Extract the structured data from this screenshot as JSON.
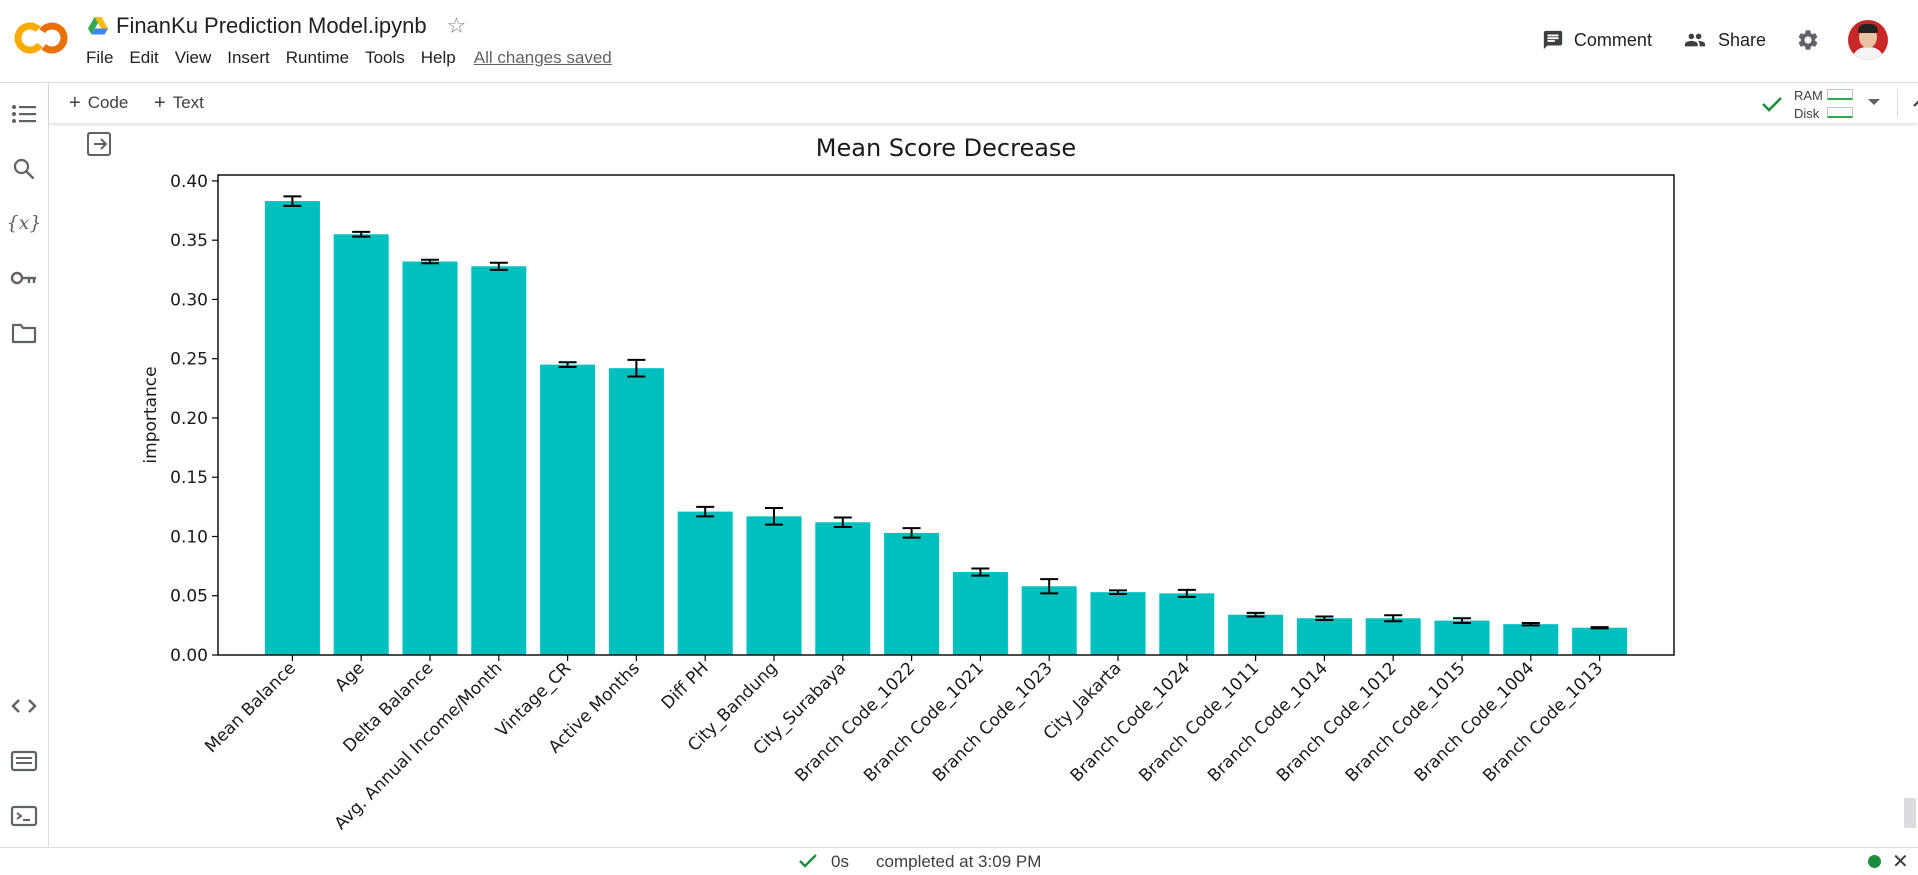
{
  "app": {
    "notebook_title": "FinanKu Prediction Model.ipynb",
    "menu": [
      "File",
      "Edit",
      "View",
      "Insert",
      "Runtime",
      "Tools",
      "Help"
    ],
    "save_status": "All changes saved",
    "comment_label": "Comment",
    "share_label": "Share"
  },
  "toolbar": {
    "code_label": "Code",
    "text_label": "Text",
    "ram_label": "RAM",
    "disk_label": "Disk"
  },
  "status": {
    "exec_time": "0s",
    "completed_text": "completed at 3:09 PM"
  },
  "colors": {
    "bar": "#00bfbf",
    "accent": "#1a73e8",
    "ok": "#1e8e3e"
  },
  "chart_data": {
    "type": "bar",
    "title": "Mean Score Decrease",
    "xlabel": "",
    "ylabel": "importance",
    "ylim": [
      0,
      0.405
    ],
    "yticks": [
      "0.00",
      "0.05",
      "0.10",
      "0.15",
      "0.20",
      "0.25",
      "0.30",
      "0.35",
      "0.40"
    ],
    "categories": [
      "Mean Balance",
      "Age",
      "Delta Balance",
      "Avg. Annual Income/Month",
      "Vintage_CR",
      "Active Months",
      "Diff PH",
      "City_Bandung",
      "City_Surabaya",
      "Branch Code_1022",
      "Branch Code_1021",
      "Branch Code_1023",
      "City_Jakarta",
      "Branch Code_1024",
      "Branch Code_1011",
      "Branch Code_1014",
      "Branch Code_1012",
      "Branch Code_1015",
      "Branch Code_1004",
      "Branch Code_1013"
    ],
    "values": [
      0.383,
      0.355,
      0.332,
      0.328,
      0.245,
      0.242,
      0.121,
      0.117,
      0.112,
      0.103,
      0.07,
      0.058,
      0.053,
      0.052,
      0.034,
      0.031,
      0.031,
      0.029,
      0.026,
      0.023
    ],
    "errors": [
      0.004,
      0.002,
      0.0015,
      0.003,
      0.002,
      0.007,
      0.004,
      0.007,
      0.004,
      0.004,
      0.003,
      0.006,
      0.0015,
      0.003,
      0.0015,
      0.0015,
      0.0025,
      0.002,
      0.001,
      0.0005
    ]
  }
}
